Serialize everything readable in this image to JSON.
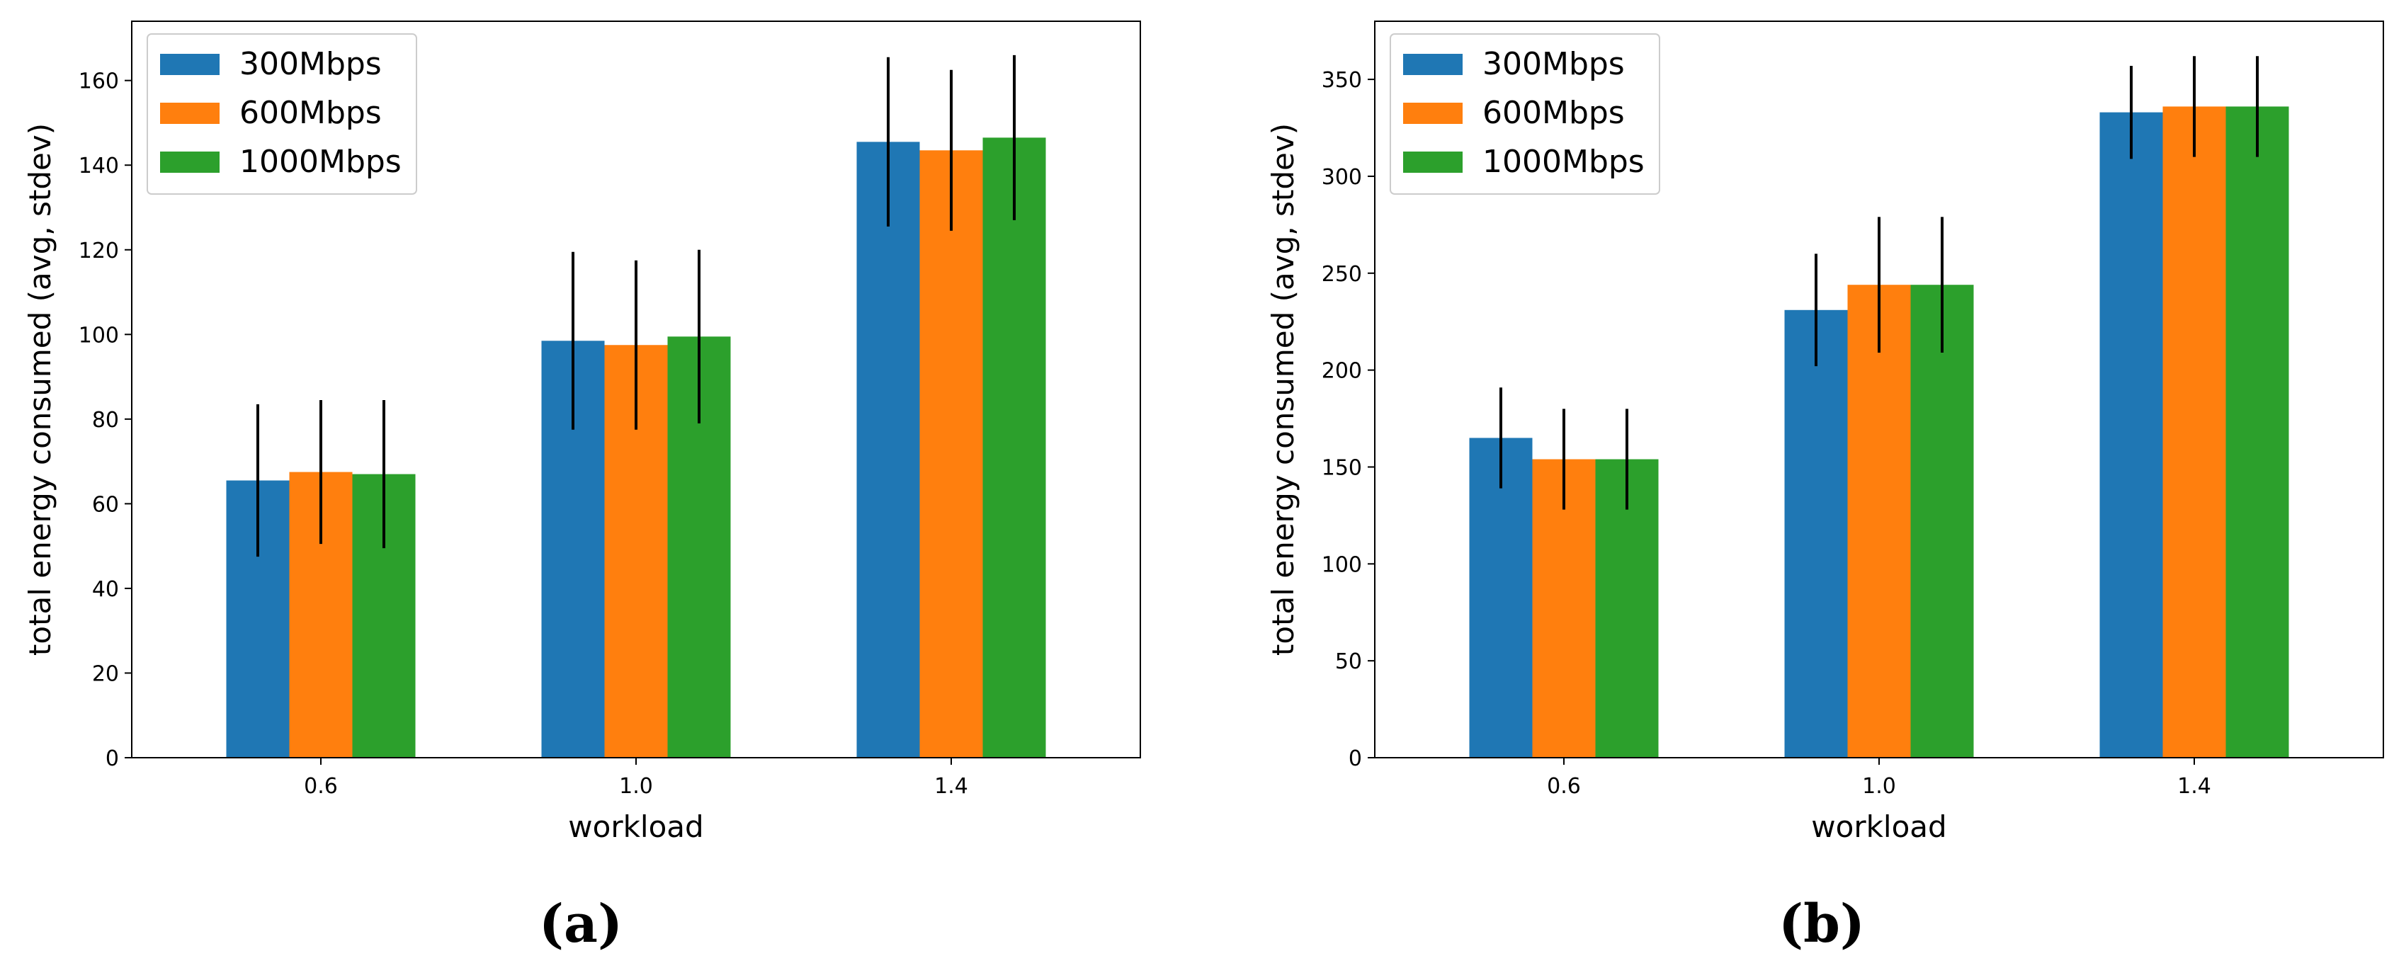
{
  "chart_data": [
    {
      "type": "bar",
      "caption": "(a)",
      "xlabel": "workload",
      "ylabel": "total energy consumed (avg, stdev)",
      "categories": [
        "0.6",
        "1.0",
        "1.4"
      ],
      "ylim": [
        0,
        174
      ],
      "yticks": [
        0,
        20,
        40,
        60,
        80,
        100,
        120,
        140,
        160
      ],
      "legend_position": "top-left",
      "series": [
        {
          "name": "300Mbps",
          "color": "#1f77b4",
          "values": [
            65.5,
            98.5,
            145.5
          ],
          "errors": [
            18,
            21,
            20
          ]
        },
        {
          "name": "600Mbps",
          "color": "#ff7f0e",
          "values": [
            67.5,
            97.5,
            143.5
          ],
          "errors": [
            17,
            20,
            19
          ]
        },
        {
          "name": "1000Mbps",
          "color": "#2ca02c",
          "values": [
            67,
            99.5,
            146.5
          ],
          "errors": [
            17.5,
            20.5,
            19.5
          ]
        }
      ]
    },
    {
      "type": "bar",
      "caption": "(b)",
      "xlabel": "workload",
      "ylabel": "total energy consumed (avg, stdev)",
      "categories": [
        "0.6",
        "1.0",
        "1.4"
      ],
      "ylim": [
        0,
        380
      ],
      "yticks": [
        0,
        50,
        100,
        150,
        200,
        250,
        300,
        350
      ],
      "legend_position": "top-left",
      "series": [
        {
          "name": "300Mbps",
          "color": "#1f77b4",
          "values": [
            165,
            231,
            333
          ],
          "errors": [
            26,
            29,
            24
          ]
        },
        {
          "name": "600Mbps",
          "color": "#ff7f0e",
          "values": [
            154,
            244,
            336
          ],
          "errors": [
            26,
            35,
            26
          ]
        },
        {
          "name": "1000Mbps",
          "color": "#2ca02c",
          "values": [
            154,
            244,
            336
          ],
          "errors": [
            26,
            35,
            26
          ]
        }
      ]
    }
  ]
}
